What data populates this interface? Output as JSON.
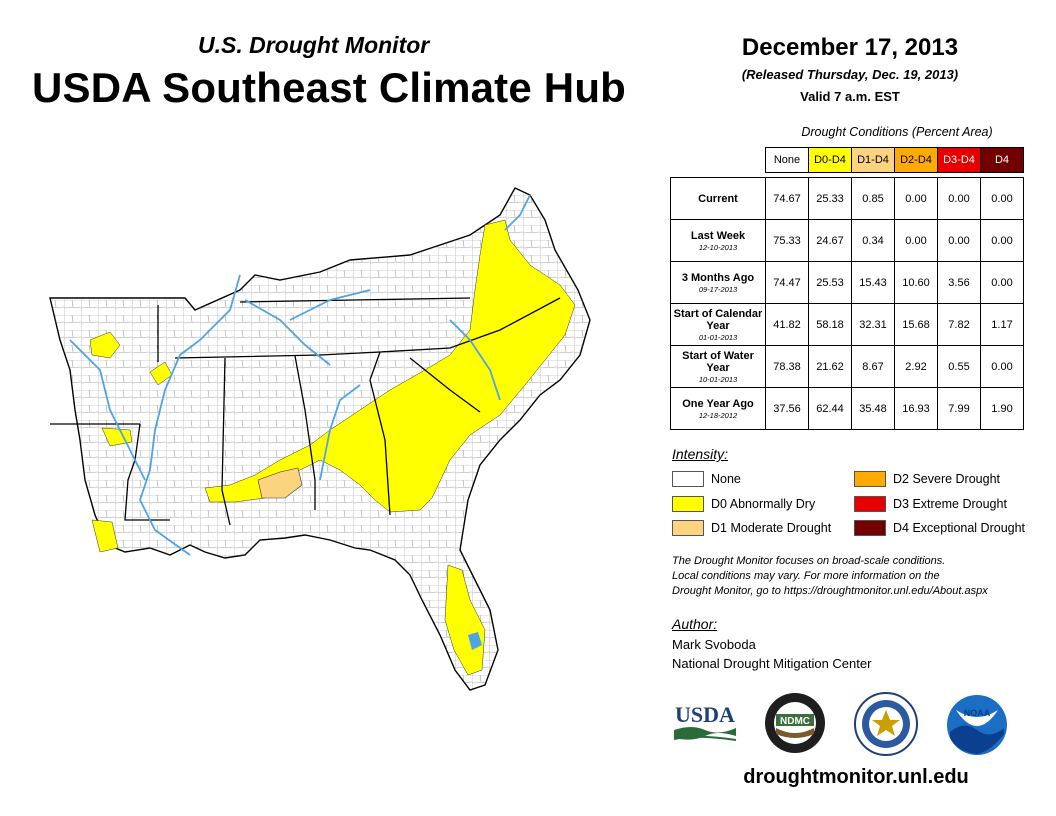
{
  "header": {
    "subtitle": "U.S. Drought Monitor",
    "title": "USDA Southeast Climate Hub",
    "date": "December 17, 2013",
    "released": "(Released Thursday, Dec. 19, 2013)",
    "valid": "Valid 7 a.m. EST"
  },
  "table": {
    "caption": "Drought Conditions (Percent Area)",
    "columns": [
      "None",
      "D0-D4",
      "D1-D4",
      "D2-D4",
      "D3-D4",
      "D4"
    ],
    "rows": [
      {
        "label": "Current",
        "date": "",
        "values": [
          "74.67",
          "25.33",
          "0.85",
          "0.00",
          "0.00",
          "0.00"
        ]
      },
      {
        "label": "Last Week",
        "date": "12-10-2013",
        "values": [
          "75.33",
          "24.67",
          "0.34",
          "0.00",
          "0.00",
          "0.00"
        ]
      },
      {
        "label": "3 Months Ago",
        "date": "09-17-2013",
        "values": [
          "74.47",
          "25.53",
          "15.43",
          "10.60",
          "3.56",
          "0.00"
        ]
      },
      {
        "label": "Start of Calendar Year",
        "date": "01-01-2013",
        "values": [
          "41.82",
          "58.18",
          "32.31",
          "15.68",
          "7.82",
          "1.17"
        ]
      },
      {
        "label": "Start of Water Year",
        "date": "10-01-2013",
        "values": [
          "78.38",
          "21.62",
          "8.67",
          "2.92",
          "0.55",
          "0.00"
        ]
      },
      {
        "label": "One Year Ago",
        "date": "12-18-2012",
        "values": [
          "37.56",
          "62.44",
          "35.48",
          "16.93",
          "7.99",
          "1.90"
        ]
      }
    ]
  },
  "legend": {
    "title": "Intensity:",
    "items": [
      {
        "label": "None"
      },
      {
        "label": "D0 Abnormally Dry"
      },
      {
        "label": "D1 Moderate Drought"
      },
      {
        "label": "D2 Severe Drought"
      },
      {
        "label": "D3 Extreme Drought"
      },
      {
        "label": "D4 Exceptional Drought"
      }
    ]
  },
  "colors": {
    "none": "#ffffff",
    "d0": "#ffff00",
    "d1": "#fcd37f",
    "d2": "#ffaa00",
    "d3": "#e60000",
    "d4": "#730000",
    "water": "#4fa3e6",
    "border": "#333333"
  },
  "note": {
    "line1": "The Drought Monitor focuses on broad-scale conditions.",
    "line2": "Local conditions may vary. For more information on the",
    "line3": "Drought Monitor, go to https://droughtmonitor.unl.edu/About.aspx"
  },
  "author": {
    "title": "Author:",
    "name": "Mark Svoboda",
    "org": "National Drought Mitigation Center"
  },
  "logos": {
    "usda": "USDA",
    "ndmc": "NDMC",
    "noaa": "NOAA"
  },
  "footer": {
    "url": "droughtmonitor.unl.edu"
  }
}
